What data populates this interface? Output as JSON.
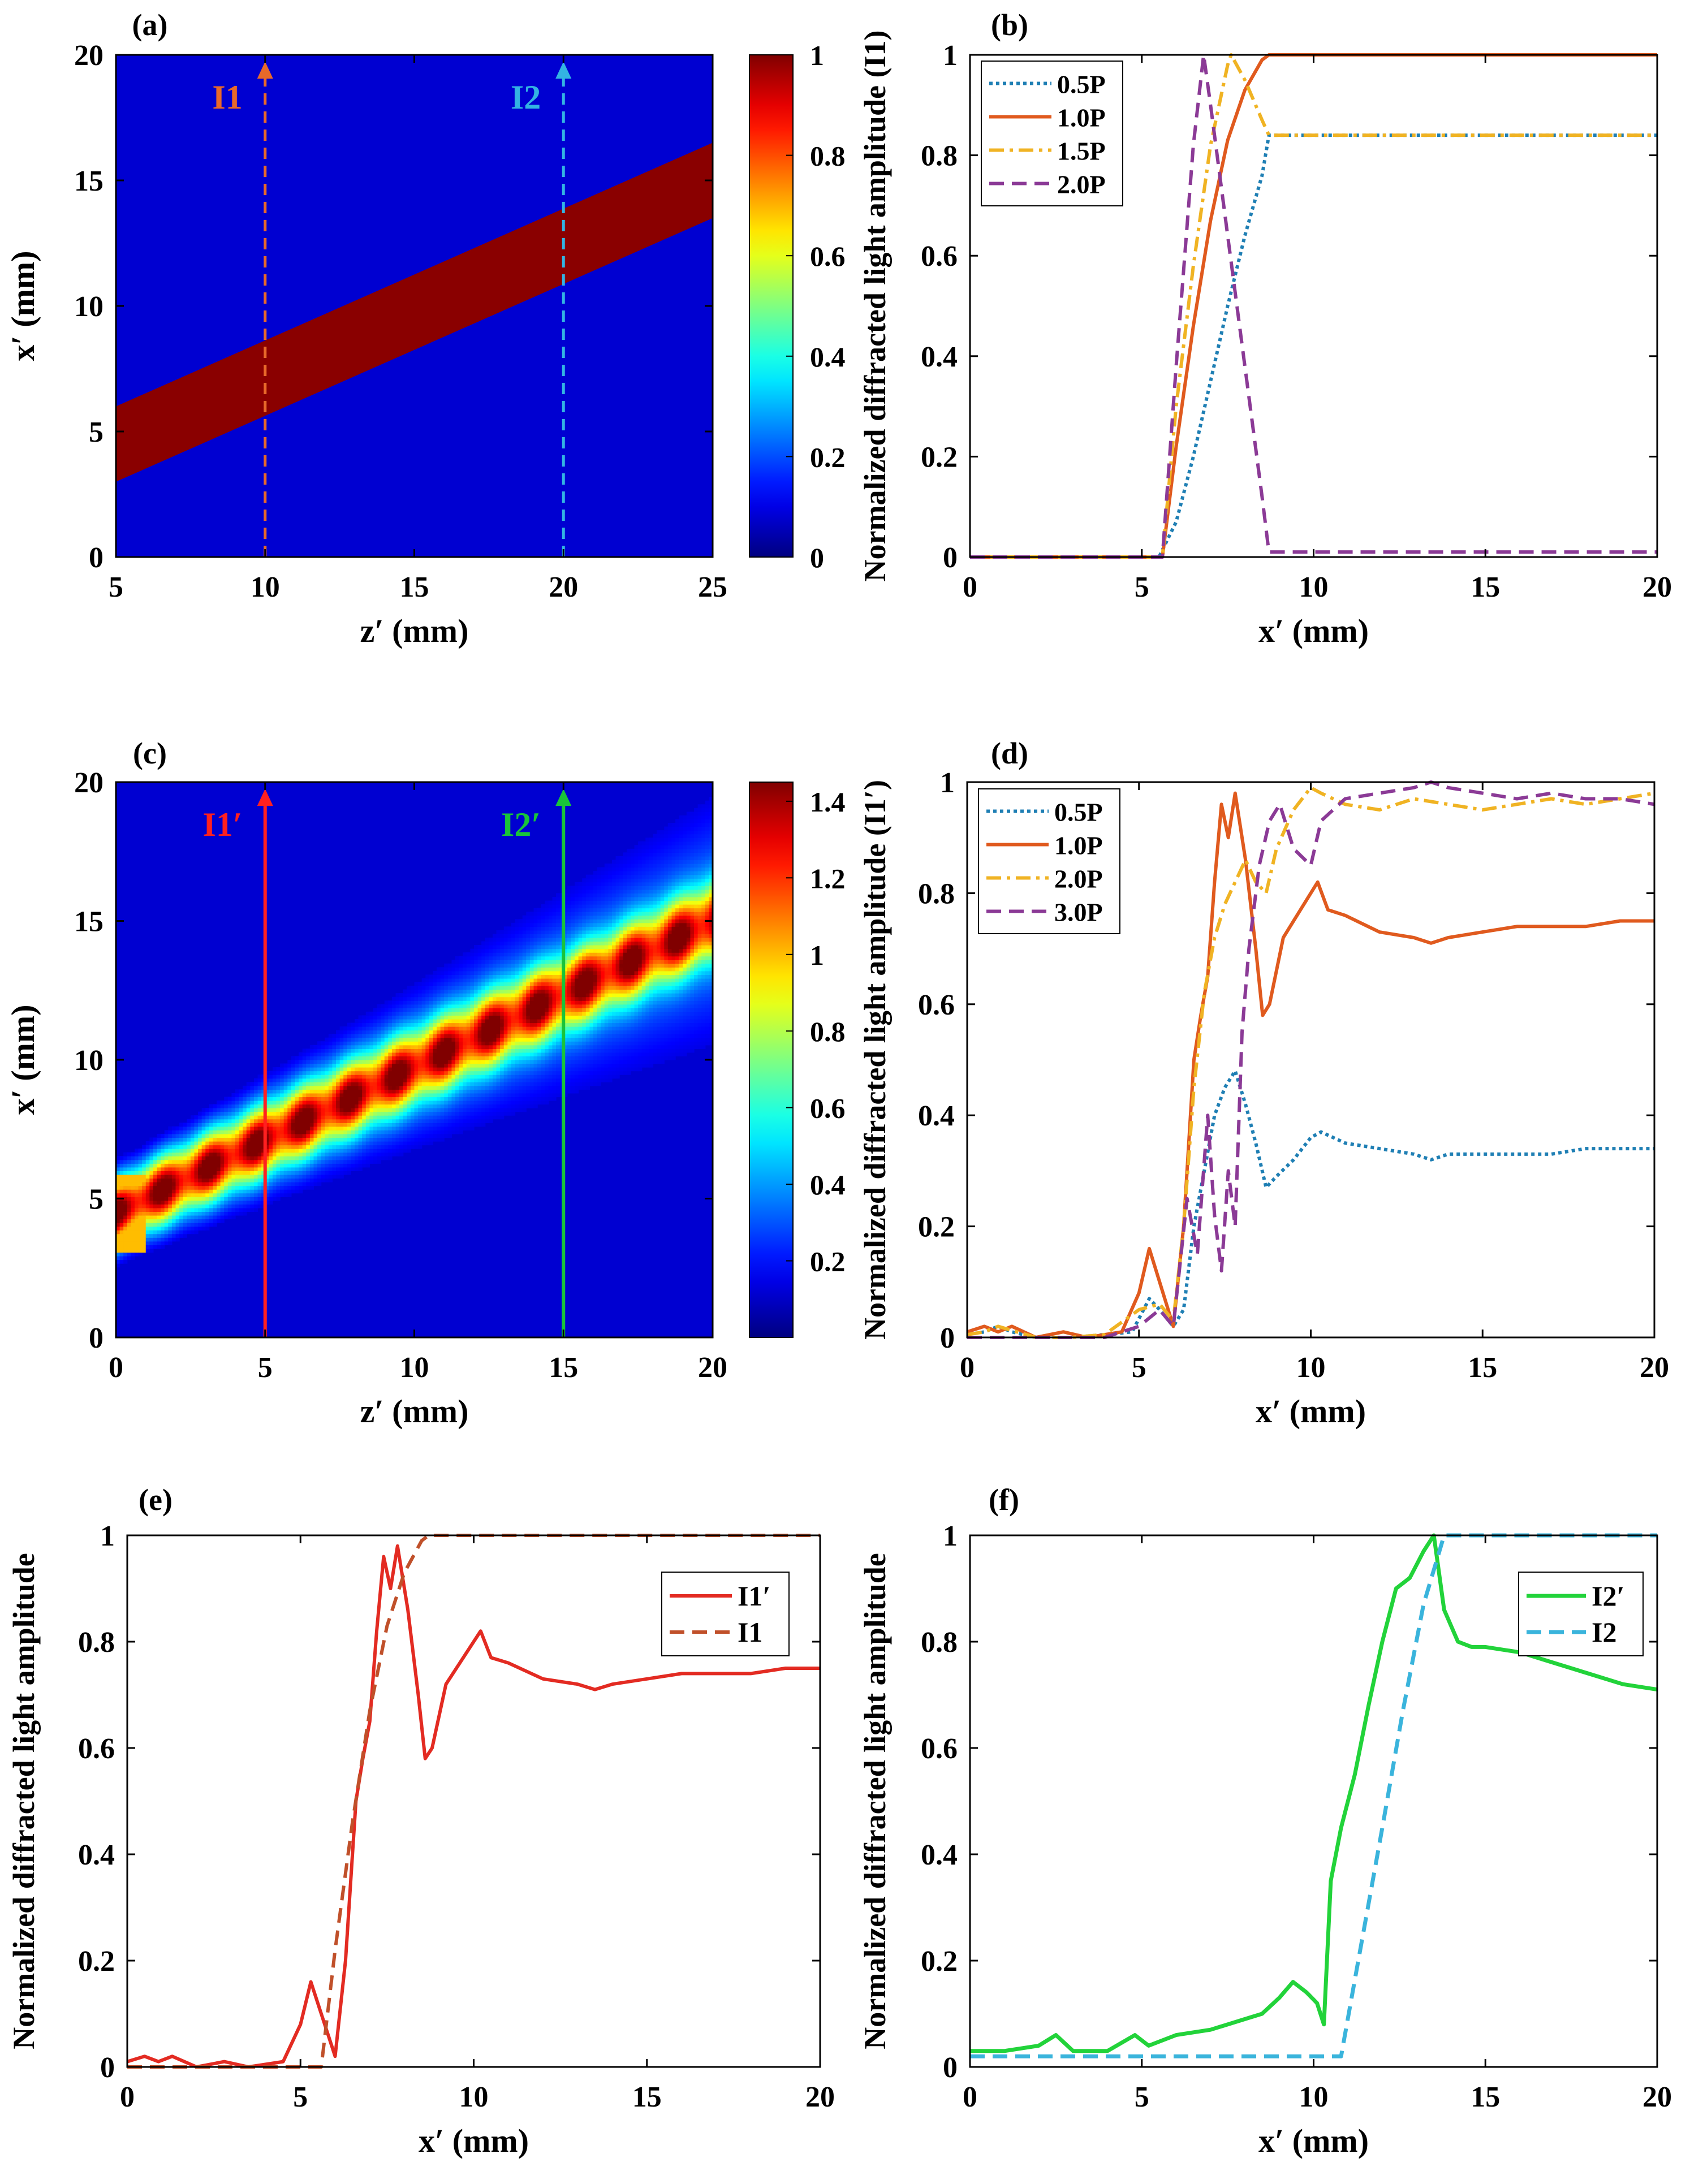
{
  "figure": {
    "panels": [
      "(a)",
      "(b)",
      "(c)",
      "(d)",
      "(e)",
      "(f)"
    ]
  },
  "chart_data": [
    {
      "id": "a",
      "type": "heatmap",
      "panel_label": "(a)",
      "xlabel": "z′ (mm)",
      "ylabel": "x′ (mm)",
      "xlim": [
        5,
        25
      ],
      "ylim": [
        0,
        20
      ],
      "x_ticks": [
        "5",
        "10",
        "15",
        "20",
        "25"
      ],
      "y_ticks": [
        "0",
        "5",
        "10",
        "15",
        "20"
      ],
      "colorbar": {
        "range": [
          0,
          1
        ],
        "ticks": [
          "0",
          "0.2",
          "0.4",
          "0.6",
          "0.8",
          "1"
        ],
        "colormap": "jet"
      },
      "background_value": 0,
      "band": {
        "value": 1,
        "lower_edge": [
          [
            5,
            3.0
          ],
          [
            25,
            13.5
          ]
        ],
        "upper_edge": [
          [
            5,
            6.0
          ],
          [
            25,
            16.5
          ]
        ]
      },
      "annotations": [
        {
          "label": "I1",
          "z": 10,
          "color": "#e8692a",
          "style": "dashed"
        },
        {
          "label": "I2",
          "z": 20,
          "color": "#33b4e3",
          "style": "dashed"
        }
      ]
    },
    {
      "id": "b",
      "type": "line",
      "panel_label": "(b)",
      "xlabel": "x′ (mm)",
      "ylabel": "Normalized diffracted light amplitude (I1)",
      "xlim": [
        0,
        20
      ],
      "ylim": [
        0,
        1
      ],
      "x_ticks": [
        "0",
        "5",
        "10",
        "15",
        "20"
      ],
      "y_ticks": [
        "0",
        "0.2",
        "0.4",
        "0.6",
        "0.8",
        "1"
      ],
      "legend_position": "top-left",
      "series": [
        {
          "name": "0.5P",
          "color": "#1f7fb4",
          "dash": "dotted",
          "x": [
            0,
            5.5,
            6,
            6.5,
            7,
            7.5,
            8,
            8.5,
            8.7,
            10,
            15,
            20
          ],
          "y": [
            0,
            0,
            0.07,
            0.2,
            0.35,
            0.5,
            0.64,
            0.76,
            0.84,
            0.84,
            0.84,
            0.84
          ]
        },
        {
          "name": "1.0P",
          "color": "#e05a1e",
          "dash": "solid",
          "x": [
            0,
            5.6,
            6,
            6.5,
            7,
            7.5,
            8,
            8.5,
            8.7,
            10,
            15,
            20
          ],
          "y": [
            0,
            0,
            0.22,
            0.46,
            0.67,
            0.83,
            0.93,
            0.99,
            1,
            1,
            1,
            1
          ]
        },
        {
          "name": "1.5P",
          "color": "#f0b323",
          "dash": "dashdot",
          "x": [
            0,
            5.6,
            6,
            6.5,
            7,
            7.5,
            7.6,
            8,
            8.5,
            8.7,
            10,
            15,
            20
          ],
          "y": [
            0,
            0,
            0.3,
            0.58,
            0.82,
            0.98,
            1,
            0.95,
            0.87,
            0.84,
            0.84,
            0.84,
            0.84
          ]
        },
        {
          "name": "2.0P",
          "color": "#8b3a96",
          "dash": "dashed",
          "x": [
            0,
            5.6,
            6,
            6.5,
            6.8,
            7,
            7.5,
            8,
            8.5,
            8.7,
            10,
            15,
            20
          ],
          "y": [
            0,
            0,
            0.38,
            0.82,
            1,
            0.9,
            0.64,
            0.38,
            0.12,
            0.01,
            0.01,
            0.01,
            0.01
          ]
        }
      ]
    },
    {
      "id": "c",
      "type": "heatmap",
      "panel_label": "(c)",
      "xlabel": "z′ (mm)",
      "ylabel": "x′ (mm)",
      "xlim": [
        0,
        20
      ],
      "ylim": [
        0,
        20
      ],
      "x_ticks": [
        "0",
        "5",
        "10",
        "15",
        "20"
      ],
      "y_ticks": [
        "0",
        "5",
        "10",
        "15",
        "20"
      ],
      "colorbar": {
        "range": [
          0,
          1.45
        ],
        "ticks": [
          "0.2",
          "0.4",
          "0.6",
          "0.8",
          "1",
          "1.2",
          "1.4"
        ],
        "colormap": "jet"
      },
      "beam": {
        "center": [
          [
            0,
            4.5
          ],
          [
            20,
            15
          ]
        ],
        "core_halfwidth": [
          [
            0,
            1.5
          ],
          [
            20,
            1.7
          ]
        ],
        "halo_halfwidth": [
          [
            0,
            1.6
          ],
          [
            20,
            5.0
          ]
        ],
        "peak_value": 1.25
      },
      "annotations": [
        {
          "label": "I1′",
          "z": 5,
          "color": "#ff2020",
          "style": "solid"
        },
        {
          "label": "I2′",
          "z": 15,
          "color": "#19c43a",
          "style": "solid"
        }
      ]
    },
    {
      "id": "d",
      "type": "line",
      "panel_label": "(d)",
      "xlabel": "x′ (mm)",
      "ylabel": "Normalized diffracted light amplitude (I1′)",
      "xlim": [
        0,
        20
      ],
      "ylim": [
        0,
        1
      ],
      "x_ticks": [
        "0",
        "5",
        "10",
        "15",
        "20"
      ],
      "y_ticks": [
        "0",
        "0.2",
        "0.4",
        "0.6",
        "0.8",
        "1"
      ],
      "legend_position": "top-left",
      "series": [
        {
          "name": "0.5P",
          "color": "#1f7fb4",
          "dash": "dotted",
          "x": [
            0,
            0.5,
            0.9,
            1.3,
            2,
            3,
            4,
            4.8,
            5.3,
            5.6,
            6,
            6.3,
            6.6,
            6.9,
            7.2,
            7.5,
            7.8,
            8.1,
            8.4,
            8.7,
            9,
            9.5,
            10,
            10.3,
            11,
            12,
            13,
            13.5,
            14,
            15,
            16,
            17,
            18,
            19,
            20
          ],
          "y": [
            0.005,
            0.01,
            0.02,
            0.01,
            0,
            0,
            0.005,
            0.01,
            0.07,
            0.05,
            0.02,
            0.05,
            0.2,
            0.3,
            0.4,
            0.45,
            0.48,
            0.42,
            0.35,
            0.27,
            0.29,
            0.32,
            0.36,
            0.37,
            0.35,
            0.34,
            0.33,
            0.32,
            0.33,
            0.33,
            0.33,
            0.33,
            0.34,
            0.34,
            0.34
          ]
        },
        {
          "name": "1.0P",
          "color": "#e05a1e",
          "dash": "solid",
          "x": [
            0,
            0.5,
            0.9,
            1.3,
            2,
            2.8,
            3.5,
            4.5,
            5,
            5.3,
            5.6,
            6,
            6.3,
            6.6,
            6.8,
            7,
            7.2,
            7.4,
            7.6,
            7.8,
            8.1,
            8.4,
            8.6,
            8.8,
            9.2,
            9.6,
            10,
            10.2,
            10.5,
            11,
            12,
            13,
            13.5,
            14,
            15,
            16,
            17,
            18,
            19,
            20
          ],
          "y": [
            0.01,
            0.02,
            0.01,
            0.02,
            0,
            0.01,
            0,
            0.01,
            0.08,
            0.16,
            0.1,
            0.02,
            0.2,
            0.5,
            0.58,
            0.65,
            0.82,
            0.96,
            0.9,
            0.98,
            0.86,
            0.7,
            0.58,
            0.6,
            0.72,
            0.76,
            0.8,
            0.82,
            0.77,
            0.76,
            0.73,
            0.72,
            0.71,
            0.72,
            0.73,
            0.74,
            0.74,
            0.74,
            0.75,
            0.75
          ]
        },
        {
          "name": "2.0P",
          "color": "#f0b323",
          "dash": "dashdot",
          "x": [
            0,
            0.5,
            0.9,
            2,
            3,
            4,
            5,
            5.6,
            6,
            6.3,
            6.6,
            6.9,
            7.2,
            7.5,
            7.8,
            8.1,
            8.4,
            8.7,
            9,
            9.5,
            10,
            10.3,
            11,
            12,
            13,
            14,
            15,
            16,
            17,
            18,
            19,
            20
          ],
          "y": [
            0.005,
            0.01,
            0.02,
            0,
            0,
            0.005,
            0.05,
            0.06,
            0.03,
            0.2,
            0.45,
            0.62,
            0.72,
            0.78,
            0.82,
            0.86,
            0.82,
            0.8,
            0.88,
            0.95,
            0.99,
            0.98,
            0.96,
            0.95,
            0.97,
            0.96,
            0.95,
            0.96,
            0.97,
            0.96,
            0.97,
            0.98
          ]
        },
        {
          "name": "3.0P",
          "color": "#8b3a96",
          "dash": "dashed",
          "x": [
            0,
            2,
            4,
            5,
            5.6,
            6,
            6.4,
            6.7,
            7,
            7.2,
            7.4,
            7.6,
            7.8,
            8,
            8.2,
            8.5,
            8.8,
            9.1,
            9.5,
            10,
            10.3,
            11,
            12,
            13,
            13.5,
            14,
            15,
            16,
            17,
            18,
            19,
            20
          ],
          "y": [
            0,
            0,
            0,
            0.02,
            0.05,
            0.02,
            0.25,
            0.15,
            0.4,
            0.22,
            0.12,
            0.3,
            0.2,
            0.55,
            0.7,
            0.85,
            0.93,
            0.96,
            0.88,
            0.85,
            0.93,
            0.97,
            0.98,
            0.99,
            1,
            0.99,
            0.98,
            0.97,
            0.98,
            0.97,
            0.97,
            0.96
          ]
        }
      ]
    },
    {
      "id": "e",
      "type": "line",
      "panel_label": "(e)",
      "xlabel": "x′ (mm)",
      "ylabel": "Normalized diffracted light amplitude",
      "xlim": [
        0,
        20
      ],
      "ylim": [
        0,
        1
      ],
      "x_ticks": [
        "0",
        "5",
        "10",
        "15",
        "20"
      ],
      "y_ticks": [
        "0",
        "0.2",
        "0.4",
        "0.6",
        "0.8",
        "1"
      ],
      "legend_position": "top-right",
      "series": [
        {
          "name": "I1′",
          "color": "#e32b22",
          "dash": "solid",
          "x": [
            0,
            0.5,
            0.9,
            1.3,
            2,
            2.8,
            3.5,
            4.5,
            5,
            5.3,
            5.6,
            6,
            6.3,
            6.6,
            6.8,
            7,
            7.2,
            7.4,
            7.6,
            7.8,
            8.1,
            8.4,
            8.6,
            8.8,
            9.2,
            9.6,
            10,
            10.2,
            10.5,
            11,
            12,
            13,
            13.5,
            14,
            15,
            16,
            17,
            18,
            19,
            20
          ],
          "y": [
            0.01,
            0.02,
            0.01,
            0.02,
            0,
            0.01,
            0,
            0.01,
            0.08,
            0.16,
            0.1,
            0.02,
            0.2,
            0.5,
            0.58,
            0.65,
            0.82,
            0.96,
            0.9,
            0.98,
            0.86,
            0.7,
            0.58,
            0.6,
            0.72,
            0.76,
            0.8,
            0.82,
            0.77,
            0.76,
            0.73,
            0.72,
            0.71,
            0.72,
            0.73,
            0.74,
            0.74,
            0.74,
            0.75,
            0.75
          ]
        },
        {
          "name": "I1",
          "color": "#c0502a",
          "dash": "dashed",
          "x": [
            0,
            5.6,
            6,
            6.5,
            7,
            7.5,
            8,
            8.5,
            8.7,
            10,
            15,
            20
          ],
          "y": [
            0,
            0,
            0.22,
            0.46,
            0.67,
            0.83,
            0.93,
            0.99,
            1,
            1,
            1,
            1
          ]
        }
      ]
    },
    {
      "id": "f",
      "type": "line",
      "panel_label": "(f)",
      "xlabel": "x′ (mm)",
      "ylabel": "Normalized diffracted light amplitude",
      "xlim": [
        0,
        20
      ],
      "ylim": [
        0,
        1
      ],
      "x_ticks": [
        "0",
        "5",
        "10",
        "15",
        "20"
      ],
      "y_ticks": [
        "0",
        "0.2",
        "0.4",
        "0.6",
        "0.8",
        "1"
      ],
      "legend_position": "top-right",
      "series": [
        {
          "name": "I2′",
          "color": "#22d33a",
          "dash": "solid",
          "x": [
            0,
            1,
            2,
            2.5,
            3,
            4,
            4.8,
            5.2,
            6,
            7,
            8,
            8.5,
            9,
            9.4,
            9.8,
            10.1,
            10.3,
            10.5,
            10.8,
            11.2,
            11.6,
            12,
            12.4,
            12.8,
            13.2,
            13.5,
            13.8,
            14.2,
            14.6,
            15,
            16,
            17,
            18,
            19,
            20
          ],
          "y": [
            0.03,
            0.03,
            0.04,
            0.06,
            0.03,
            0.03,
            0.06,
            0.04,
            0.06,
            0.07,
            0.09,
            0.1,
            0.13,
            0.16,
            0.14,
            0.12,
            0.08,
            0.35,
            0.45,
            0.55,
            0.68,
            0.8,
            0.9,
            0.92,
            0.97,
            1,
            0.86,
            0.8,
            0.79,
            0.79,
            0.78,
            0.76,
            0.74,
            0.72,
            0.71
          ]
        },
        {
          "name": "I2",
          "color": "#3ab4dc",
          "dash": "dashed",
          "x": [
            0,
            10.8,
            11.3,
            12,
            12.6,
            13.2,
            13.8,
            15,
            20
          ],
          "y": [
            0.02,
            0.02,
            0.2,
            0.45,
            0.67,
            0.87,
            1,
            1,
            1
          ]
        }
      ]
    }
  ]
}
